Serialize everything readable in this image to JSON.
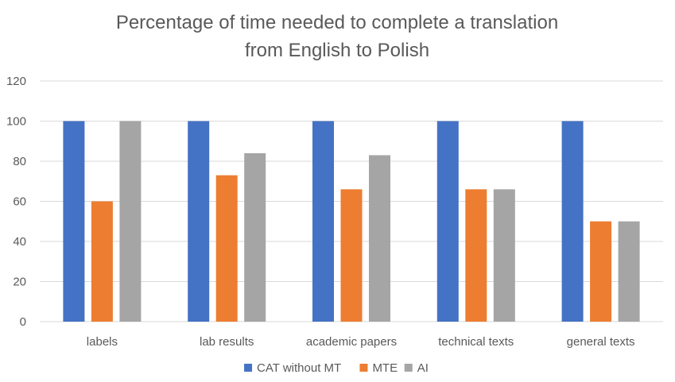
{
  "chart_data": {
    "type": "bar",
    "title": "Percentage of time needed to complete a translation from English to Polish",
    "title_lines": [
      "Percentage of time needed to complete a translation",
      "from English to Polish"
    ],
    "xlabel": "",
    "ylabel": "",
    "categories": [
      "labels",
      "lab results",
      "academic papers",
      "technical texts",
      "general texts"
    ],
    "series": [
      {
        "name": "CAT without MT",
        "color": "#4472c4",
        "values": [
          100,
          100,
          100,
          100,
          100
        ]
      },
      {
        "name": "MTE",
        "color": "#ed7d31",
        "values": [
          60,
          73,
          66,
          66,
          50
        ]
      },
      {
        "name": "AI",
        "color": "#a5a5a5",
        "values": [
          100,
          84,
          83,
          66,
          50
        ]
      }
    ],
    "ylim": [
      0,
      120
    ],
    "yticks": [
      0,
      20,
      40,
      60,
      80,
      100,
      120
    ],
    "grid": true,
    "legend_position": "bottom"
  }
}
